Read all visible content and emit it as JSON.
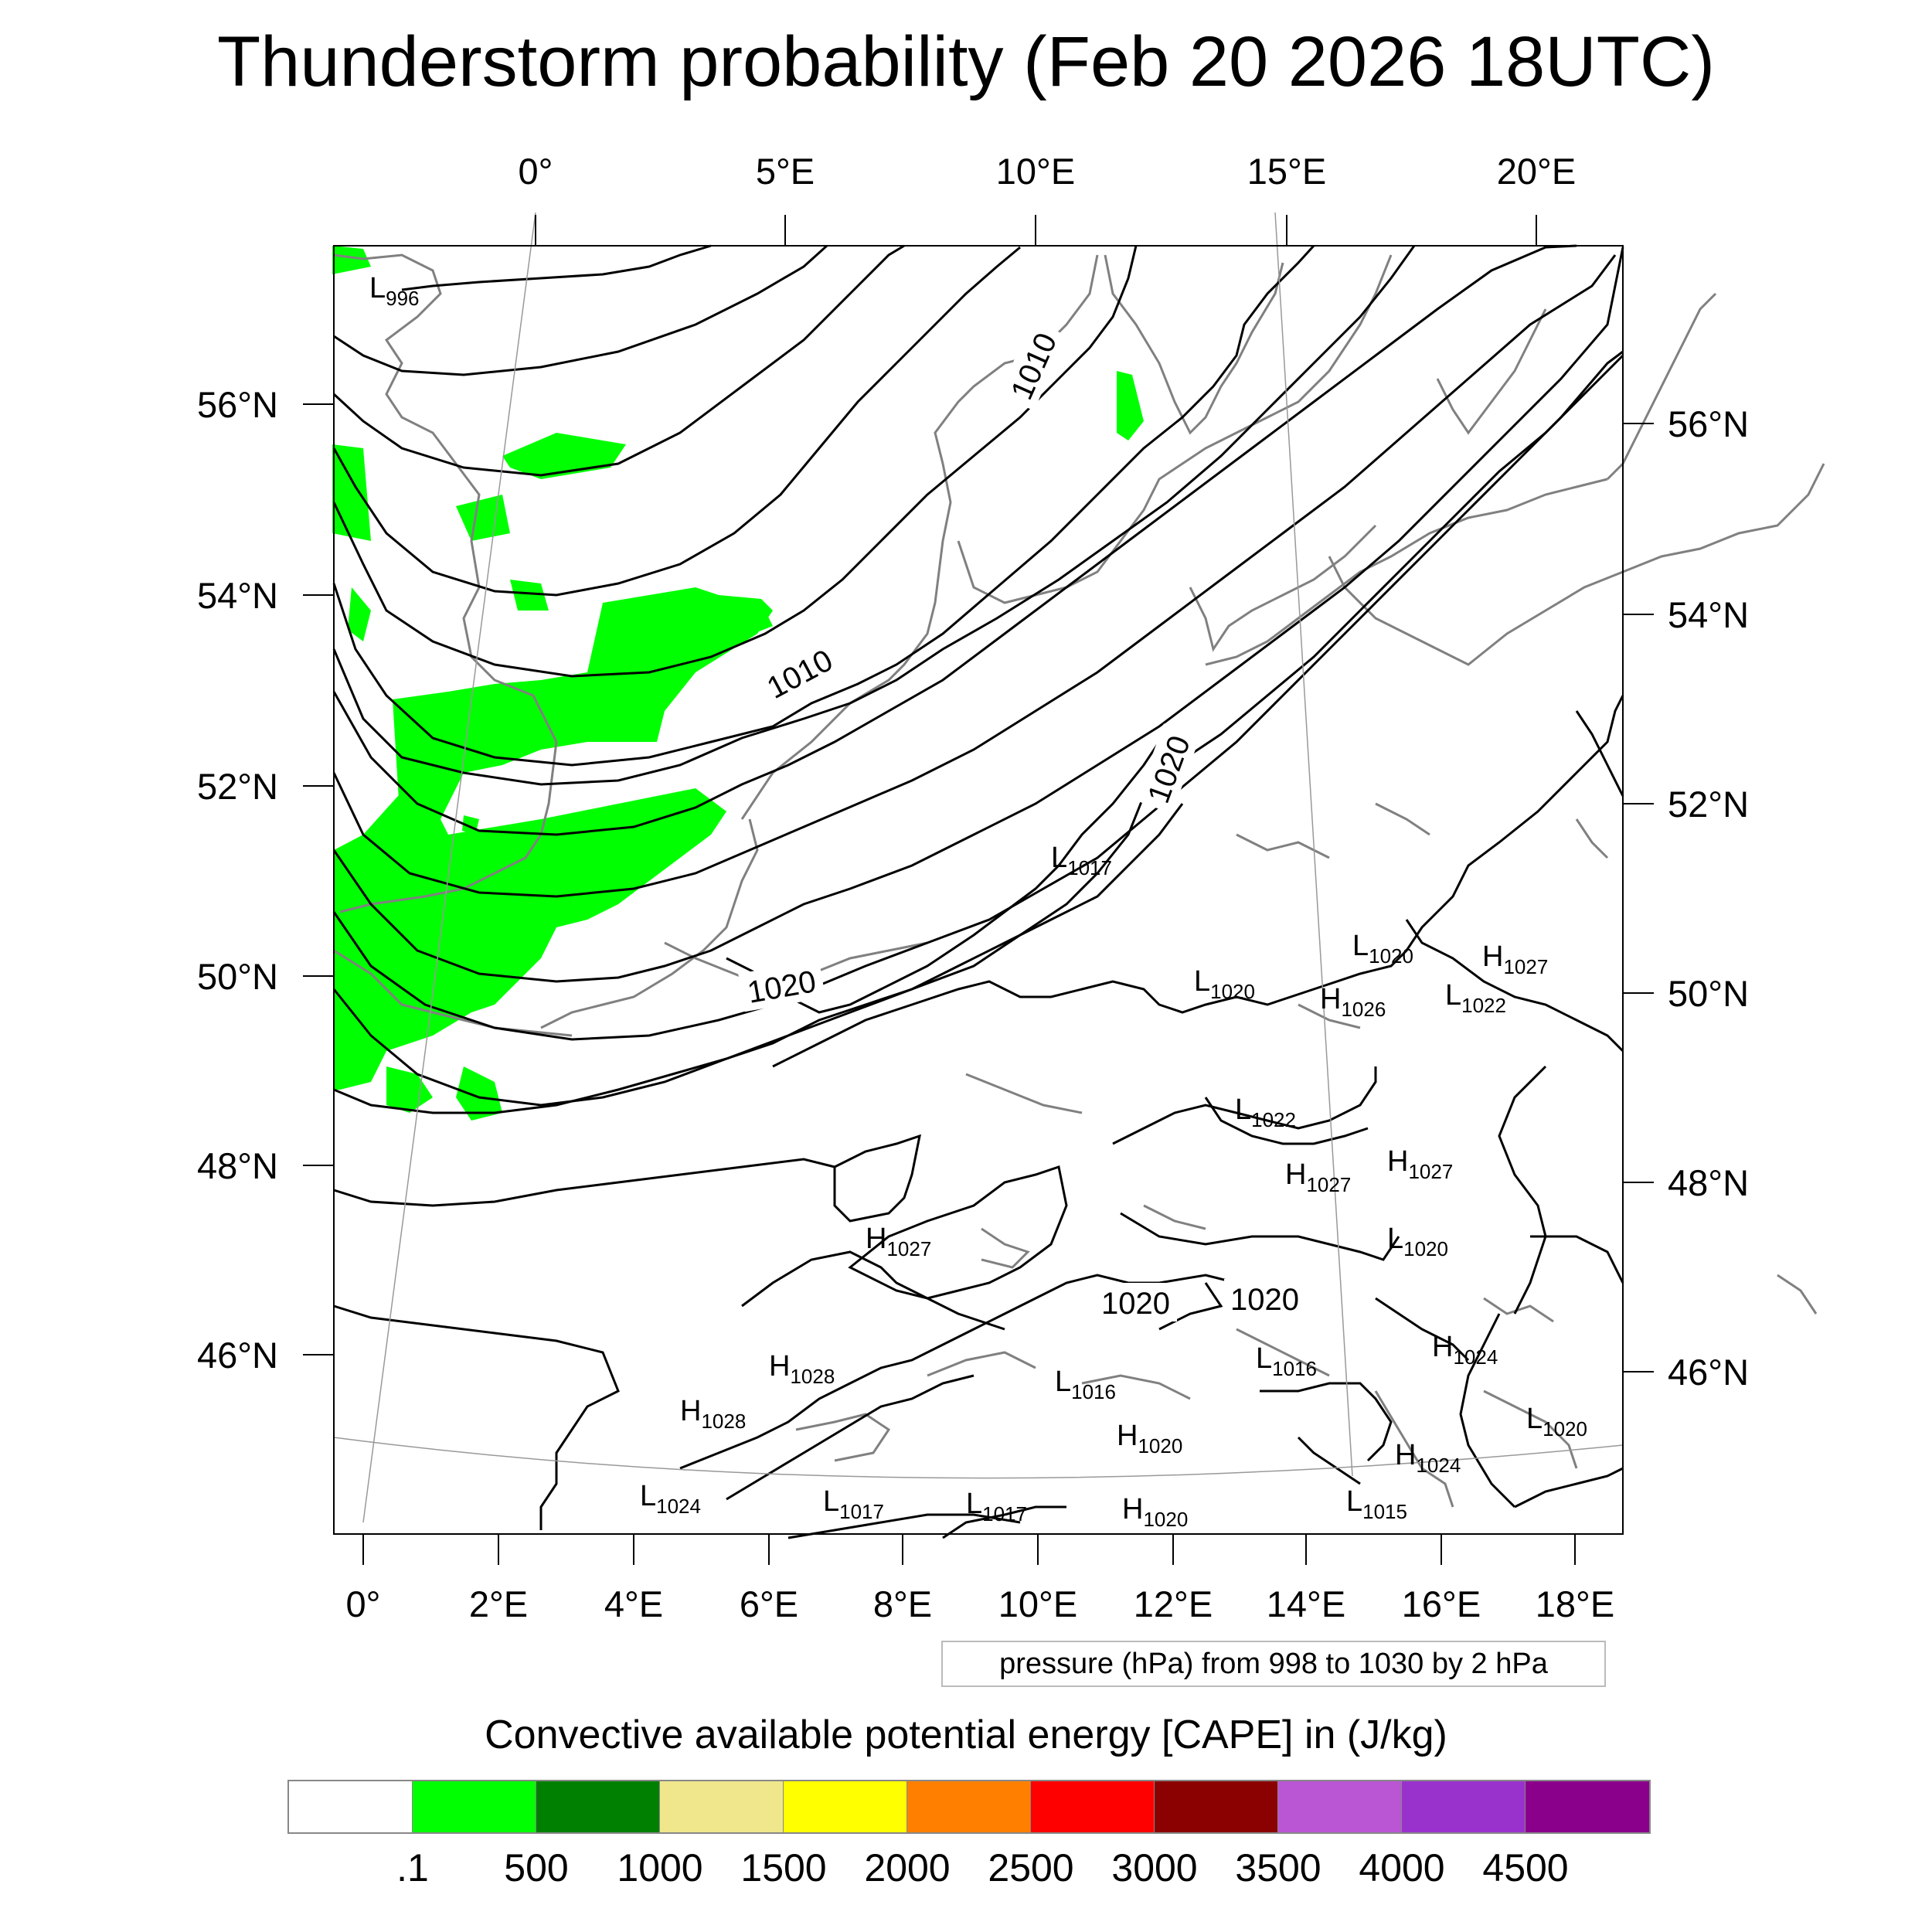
{
  "title": "Thunderstorm probability (Feb 20 2026 18UTC)",
  "axes": {
    "top_lon": [
      "0°",
      "5°E",
      "10°E",
      "15°E",
      "20°E"
    ],
    "bottom_lon": [
      "0°",
      "2°E",
      "4°E",
      "6°E",
      "8°E",
      "10°E",
      "12°E",
      "14°E",
      "16°E",
      "18°E"
    ],
    "left_lat": [
      "56°N",
      "54°N",
      "52°N",
      "50°N",
      "48°N",
      "46°N"
    ],
    "right_lat": [
      "56°N",
      "54°N",
      "52°N",
      "50°N",
      "48°N",
      "46°N"
    ]
  },
  "isobar_labels": [
    "1010",
    "1010",
    "1020",
    "1020",
    "1020",
    "1020"
  ],
  "pressure_centers": [
    {
      "type": "L",
      "value": "996"
    },
    {
      "type": "L",
      "value": "1017"
    },
    {
      "type": "L",
      "value": "1020"
    },
    {
      "type": "L",
      "value": "1020"
    },
    {
      "type": "H",
      "value": "1027"
    },
    {
      "type": "H",
      "value": "1026"
    },
    {
      "type": "L",
      "value": "1022"
    },
    {
      "type": "L",
      "value": "1022"
    },
    {
      "type": "H",
      "value": "1027"
    },
    {
      "type": "H",
      "value": "1027"
    },
    {
      "type": "H",
      "value": "1027"
    },
    {
      "type": "L",
      "value": "1020"
    },
    {
      "type": "H",
      "value": "1028"
    },
    {
      "type": "H",
      "value": "1028"
    },
    {
      "type": "L",
      "value": "1016"
    },
    {
      "type": "L",
      "value": "1016"
    },
    {
      "type": "H",
      "value": "1024"
    },
    {
      "type": "H",
      "value": "1024"
    },
    {
      "type": "L",
      "value": "1020"
    },
    {
      "type": "L",
      "value": "1024"
    },
    {
      "type": "L",
      "value": "1017"
    },
    {
      "type": "L",
      "value": "1017"
    },
    {
      "type": "H",
      "value": "1020"
    },
    {
      "type": "L",
      "value": "1015"
    },
    {
      "type": "H",
      "value": "1020"
    }
  ],
  "contour_info": "pressure (hPa) from 998 to 1030 by 2 hPa",
  "colorbar": {
    "title": "Convective available potential energy [CAPE] in (J/kg)",
    "colors": [
      "#ffffff",
      "#00ff00",
      "#008000",
      "#f0e68c",
      "#ffff00",
      "#ff8000",
      "#ff0000",
      "#8b0000",
      "#ba55d3",
      "#9932cc",
      "#8b008b"
    ],
    "ticks": [
      ".1",
      "500",
      "1000",
      "1500",
      "2000",
      "2500",
      "3000",
      "3500",
      "4000",
      "4500"
    ]
  },
  "colors": {
    "cape_fill": "#00ff00",
    "coastline": "#808080",
    "isobar": "#000000"
  }
}
